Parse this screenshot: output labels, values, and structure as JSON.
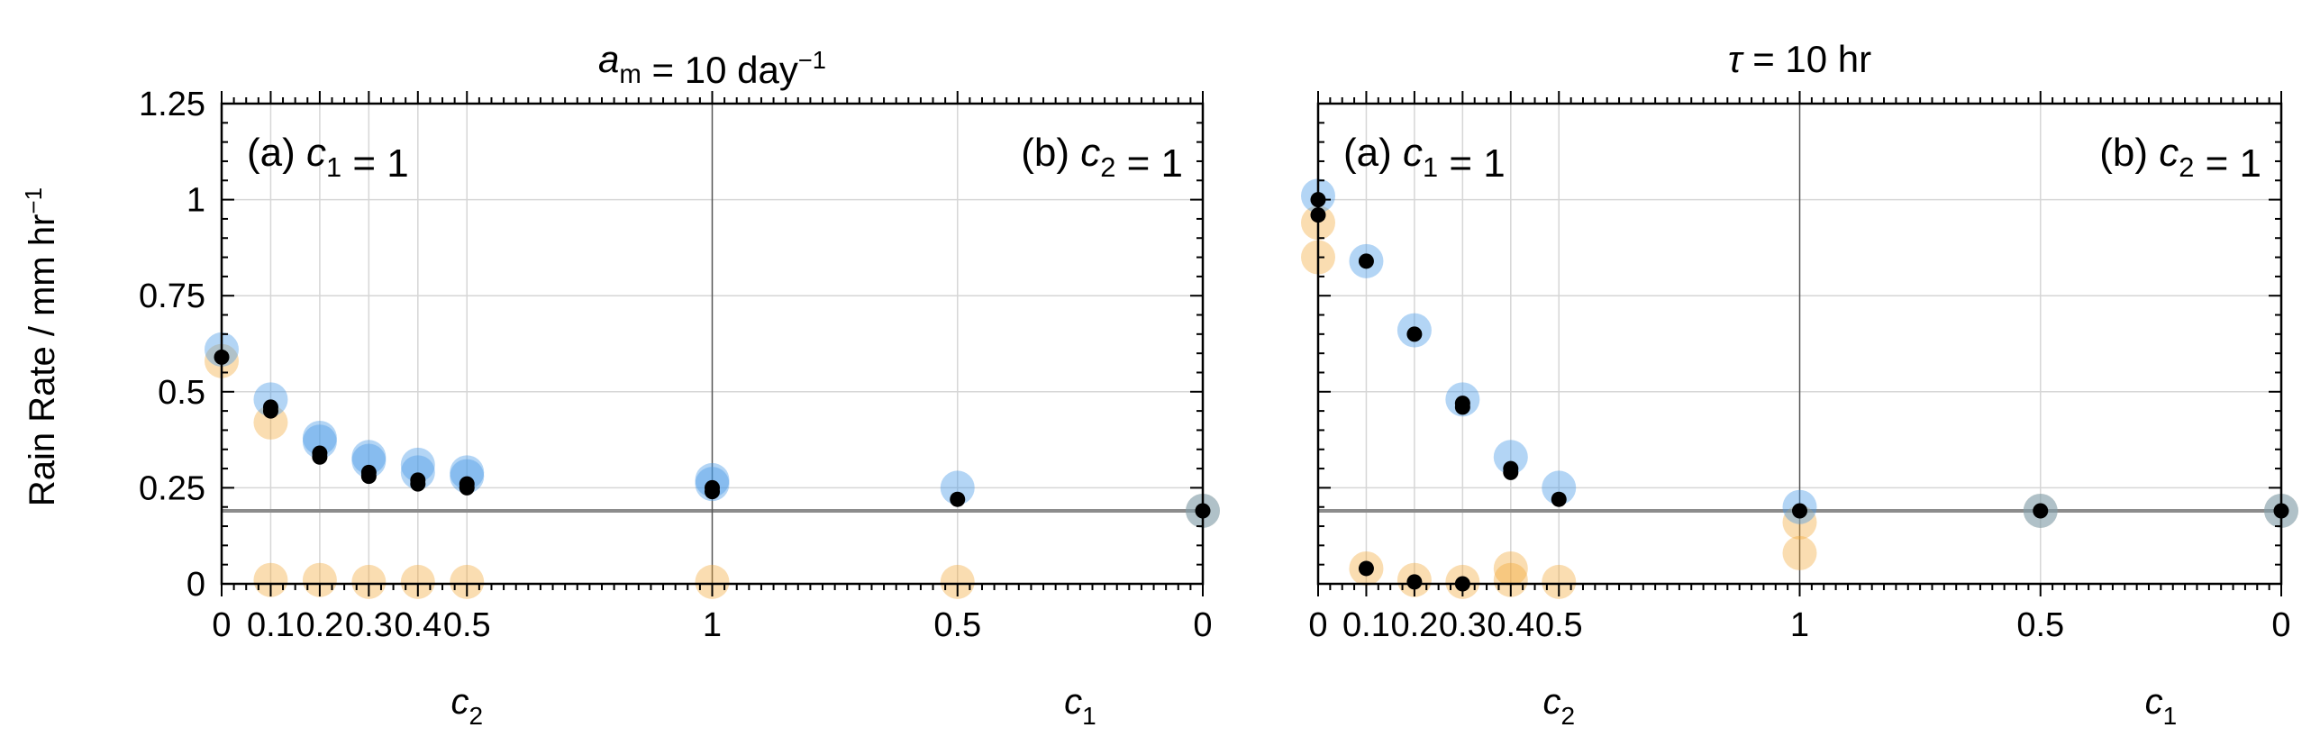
{
  "ylabel": "Rain Rate / mm hr",
  "ylabel_sup": "−1",
  "colors": {
    "blue": "#4a9be8",
    "orange": "#f1a533",
    "black": "#000000",
    "ref_line": "#8c8c8c",
    "grid": "#d6d6d6"
  },
  "chart_data": [
    {
      "type": "scatter",
      "title": {
        "var": "a",
        "sub": "m",
        "eq": " = 10 day",
        "sup": "−1"
      },
      "panel_a": {
        "prefix": "(a) ",
        "var": "c",
        "sub": "1",
        "eq": " = 1"
      },
      "panel_b": {
        "prefix": "(b) ",
        "var": "c",
        "sub": "2",
        "eq": " = 1"
      },
      "xlabel_a": {
        "var": "c",
        "sub": "2"
      },
      "xlabel_b": {
        "var": "c",
        "sub": "1"
      },
      "x_ticks_a": [
        "0",
        "0.1",
        "0.2",
        "0.3",
        "0.4",
        "0.5"
      ],
      "x_ticks_b": [
        "1",
        "0.5",
        "0"
      ],
      "y_ticks": [
        "0",
        "0.25",
        "0.5",
        "0.75",
        "1",
        "1.25"
      ],
      "ylim": [
        0,
        1.25
      ],
      "reference_line": 0.19,
      "grid": true,
      "points": {
        "black": [
          [
            0.0,
            0.59
          ],
          [
            0.1,
            0.45
          ],
          [
            0.1,
            0.46
          ],
          [
            0.2,
            0.33
          ],
          [
            0.2,
            0.34
          ],
          [
            0.3,
            0.28
          ],
          [
            0.3,
            0.29
          ],
          [
            0.4,
            0.26
          ],
          [
            0.4,
            0.27
          ],
          [
            0.5,
            0.25
          ],
          [
            0.5,
            0.26
          ],
          [
            1.0,
            0.24
          ],
          [
            1.0,
            0.25
          ],
          [
            1.5,
            0.22
          ],
          [
            2.0,
            0.19
          ]
        ],
        "blue": [
          [
            0.0,
            0.61
          ],
          [
            0.1,
            0.48
          ],
          [
            0.2,
            0.38
          ],
          [
            0.2,
            0.37
          ],
          [
            0.3,
            0.33
          ],
          [
            0.3,
            0.32
          ],
          [
            0.4,
            0.31
          ],
          [
            0.4,
            0.29
          ],
          [
            0.5,
            0.29
          ],
          [
            0.5,
            0.28
          ],
          [
            1.0,
            0.27
          ],
          [
            1.0,
            0.26
          ],
          [
            1.5,
            0.25
          ],
          [
            2.0,
            0.19
          ]
        ],
        "orange": [
          [
            0.0,
            0.58
          ],
          [
            0.1,
            0.42
          ],
          [
            0.1,
            0.01
          ],
          [
            0.2,
            0.01
          ],
          [
            0.3,
            0.005
          ],
          [
            0.4,
            0.005
          ],
          [
            0.5,
            0.005
          ],
          [
            1.0,
            0.005
          ],
          [
            1.5,
            0.005
          ],
          [
            2.0,
            0.19
          ]
        ]
      }
    },
    {
      "type": "scatter",
      "title": {
        "var": "τ",
        "sub": "",
        "eq": " = 10 hr",
        "sup": ""
      },
      "panel_a": {
        "prefix": "(a) ",
        "var": "c",
        "sub": "1",
        "eq": " = 1"
      },
      "panel_b": {
        "prefix": "(b) ",
        "var": "c",
        "sub": "2",
        "eq": " = 1"
      },
      "xlabel_a": {
        "var": "c",
        "sub": "2"
      },
      "xlabel_b": {
        "var": "c",
        "sub": "1"
      },
      "x_ticks_a": [
        "0",
        "0.1",
        "0.2",
        "0.3",
        "0.4",
        "0.5"
      ],
      "x_ticks_b": [
        "1",
        "0.5",
        "0"
      ],
      "y_ticks": [
        "0",
        "0.25",
        "0.5",
        "0.75",
        "1",
        "1.25"
      ],
      "ylim": [
        0,
        1.25
      ],
      "reference_line": 0.19,
      "grid": true,
      "points": {
        "black": [
          [
            0.0,
            1.0
          ],
          [
            0.0,
            0.96
          ],
          [
            0.1,
            0.84
          ],
          [
            0.2,
            0.65
          ],
          [
            0.3,
            0.46
          ],
          [
            0.3,
            0.47
          ],
          [
            0.4,
            0.29
          ],
          [
            0.4,
            0.3
          ],
          [
            0.5,
            0.22
          ],
          [
            0.1,
            0.04
          ],
          [
            0.2,
            0.005
          ],
          [
            0.3,
            0.0
          ],
          [
            1.0,
            0.19
          ],
          [
            1.5,
            0.19
          ],
          [
            2.0,
            0.19
          ]
        ],
        "blue": [
          [
            0.0,
            1.01
          ],
          [
            0.1,
            0.84
          ],
          [
            0.2,
            0.66
          ],
          [
            0.3,
            0.48
          ],
          [
            0.4,
            0.33
          ],
          [
            0.5,
            0.25
          ],
          [
            1.0,
            0.2
          ],
          [
            1.5,
            0.19
          ],
          [
            2.0,
            0.19
          ]
        ],
        "orange": [
          [
            0.0,
            0.94
          ],
          [
            0.0,
            0.85
          ],
          [
            0.1,
            0.04
          ],
          [
            0.2,
            0.01
          ],
          [
            0.3,
            0.005
          ],
          [
            0.4,
            0.04
          ],
          [
            0.4,
            0.01
          ],
          [
            0.5,
            0.005
          ],
          [
            1.0,
            0.16
          ],
          [
            1.0,
            0.08
          ],
          [
            1.5,
            0.19
          ],
          [
            2.0,
            0.19
          ]
        ]
      }
    }
  ]
}
